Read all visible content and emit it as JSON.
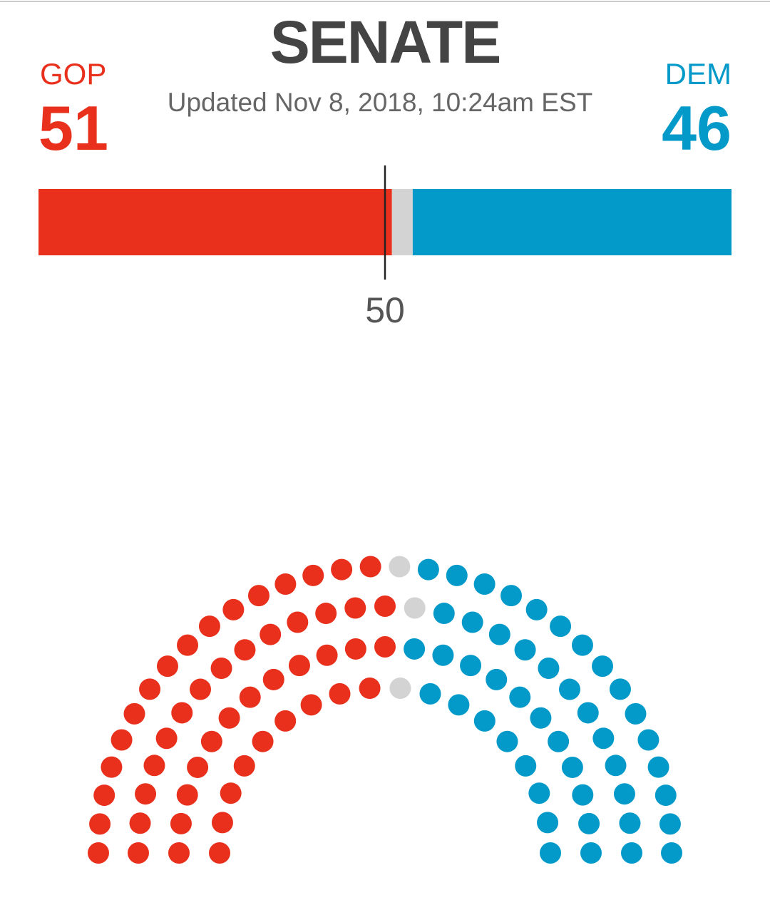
{
  "chart_data": {
    "type": "seats",
    "title": "SENATE",
    "subtitle": "Updated Nov 8, 2018, 10:24am EST",
    "series": [
      {
        "name": "GOP",
        "color": "#e8301c",
        "values": [
          51
        ]
      },
      {
        "color": "#d3d3d3",
        "values": [
          3
        ]
      },
      {
        "name": "DEM",
        "color": "#039ac9",
        "values": [
          46
        ]
      }
    ],
    "xlim": [
      0,
      100
    ],
    "xticks": [
      50
    ]
  }
}
